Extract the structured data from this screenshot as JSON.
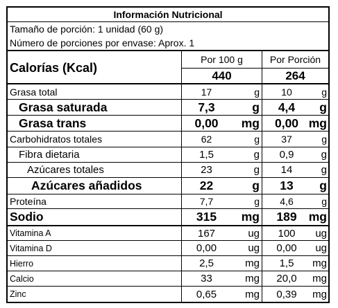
{
  "title": "Información Nutricional",
  "serving_size": "Tamaño de porción: 1 unidad (60 g)",
  "servings_per_container": "Número de porciones por envase: Aprox. 1",
  "calories": {
    "label": "Calorías (Kcal)",
    "col1_header": "Por 100 g",
    "col2_header": "Por Porción",
    "col1_value": "440",
    "col2_value": "264"
  },
  "nutrients": [
    {
      "name": "Grasa total",
      "v1": "17",
      "u1": "g",
      "v2": "10",
      "u2": "g"
    },
    {
      "name": "Grasa saturada",
      "v1": "7,3",
      "u1": "g",
      "v2": "4,4",
      "u2": "g"
    },
    {
      "name": "Grasa trans",
      "v1": "0,00",
      "u1": "mg",
      "v2": "0,00",
      "u2": "mg"
    },
    {
      "name": "Carbohidratos totales",
      "v1": "62",
      "u1": "g",
      "v2": "37",
      "u2": "g"
    },
    {
      "name": "Fibra dietaria",
      "v1": "1,5",
      "u1": "g",
      "v2": "0,9",
      "u2": "g"
    },
    {
      "name": "Azúcares totales",
      "v1": "23",
      "u1": "g",
      "v2": "14",
      "u2": "g"
    },
    {
      "name": "Azúcares añadidos",
      "v1": "22",
      "u1": "g",
      "v2": "13",
      "u2": "g"
    },
    {
      "name": "Proteína",
      "v1": "7,7",
      "u1": "g",
      "v2": "4,6",
      "u2": "g"
    },
    {
      "name": "Sodio",
      "v1": "315",
      "u1": "mg",
      "v2": "189",
      "u2": "mg"
    },
    {
      "name": "Vitamina A",
      "v1": "167",
      "u1": "ug",
      "v2": "100",
      "u2": "ug"
    },
    {
      "name": "Vitamina D",
      "v1": "0,00",
      "u1": "ug",
      "v2": "0,00",
      "u2": "ug"
    },
    {
      "name": "Hierro",
      "v1": "2,5",
      "u1": "mg",
      "v2": "1,5",
      "u2": "mg"
    },
    {
      "name": "Calcio",
      "v1": "33",
      "u1": "mg",
      "v2": "20,0",
      "u2": "mg"
    },
    {
      "name": "Zinc",
      "v1": "0,65",
      "u1": "mg",
      "v2": "0,39",
      "u2": "mg"
    }
  ]
}
